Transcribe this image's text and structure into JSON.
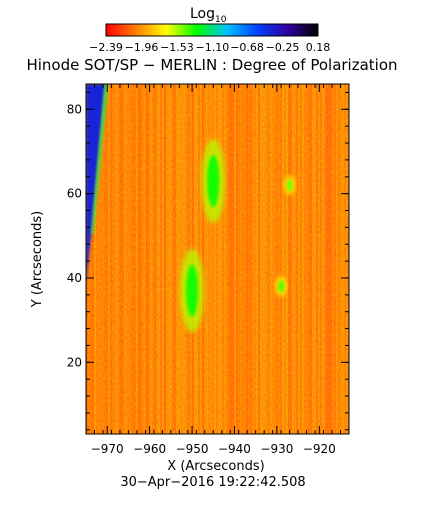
{
  "chart_data": {
    "type": "heatmap",
    "title": "Hinode SOT/SP − MERLIN : Degree of Polarization",
    "xlabel": "X (Arcseconds)",
    "ylabel": "Y (Arcseconds)",
    "timestamp": "30−Apr−2016 19:22:42.508",
    "xlim": [
      -975,
      -913
    ],
    "ylim": [
      3,
      86
    ],
    "x_ticks": [
      -970,
      -960,
      -950,
      -940,
      -930,
      -920
    ],
    "y_ticks": [
      20,
      40,
      60,
      80
    ],
    "x_tick_labels": [
      "−970",
      "−960",
      "−950",
      "−940",
      "−930",
      "−920"
    ],
    "y_tick_labels": [
      "20",
      "40",
      "60",
      "80"
    ],
    "colorbar": {
      "label": "Log",
      "label_sub": "10",
      "range": [
        -2.39,
        0.18
      ],
      "tick_values": [
        -2.39,
        -1.96,
        -1.53,
        -1.1,
        -0.68,
        -0.25,
        0.18
      ],
      "tick_labels": [
        "−2.39",
        "−1.96",
        "−1.53",
        "−1.10",
        "−0.68",
        "−0.25",
        "0.18"
      ],
      "colors": [
        "#ff0000",
        "#ff8000",
        "#ffff00",
        "#00ff00",
        "#00c0ff",
        "#0040ff",
        "#3000a0",
        "#000000"
      ]
    },
    "background_value": -1.8,
    "features": [
      {
        "name": "limb",
        "description": "blue/green band along left edge",
        "x_range": [
          -974,
          -971
        ],
        "value": -0.4
      },
      {
        "name": "patch-1",
        "x": -950,
        "y": 37,
        "value": -1.3
      },
      {
        "name": "patch-2",
        "x": -945,
        "y": 63,
        "value": -1.3
      },
      {
        "name": "patch-3",
        "x": -929,
        "y": 38,
        "value": -1.4
      },
      {
        "name": "patch-4",
        "x": -927,
        "y": 62,
        "value": -1.45
      }
    ]
  }
}
